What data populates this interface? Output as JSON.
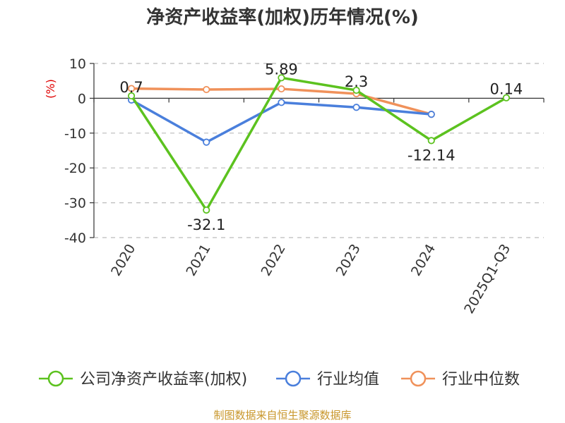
{
  "chart_data": {
    "type": "line",
    "title": "净资产收益率(加权)历年情况(%)",
    "ylabel": "(%)",
    "xlabel": "",
    "categories": [
      "2020",
      "2021",
      "2022",
      "2023",
      "2024",
      "2025Q1-Q3"
    ],
    "ylim": [
      -40,
      10
    ],
    "yticks": [
      10,
      0,
      -10,
      -20,
      -30,
      -40
    ],
    "grid": true,
    "legend_position": "bottom",
    "series": [
      {
        "name": "公司净资产收益率(加权)",
        "color": "#5cc21f",
        "values": [
          0.7,
          -32.1,
          5.89,
          2.3,
          -12.14,
          0.14
        ],
        "labels": [
          "0.7",
          "-32.1",
          "5.89",
          "2.3",
          "-12.14",
          "0.14"
        ]
      },
      {
        "name": "行业均值",
        "color": "#4a7fdc",
        "values": [
          -0.5,
          -12.6,
          -1.2,
          -2.6,
          -4.6,
          null
        ]
      },
      {
        "name": "行业中位数",
        "color": "#f0915a",
        "values": [
          2.8,
          2.5,
          2.7,
          1.3,
          -4.6,
          null
        ]
      }
    ]
  },
  "footer": {
    "source": "制图数据来自恒生聚源数据库"
  }
}
